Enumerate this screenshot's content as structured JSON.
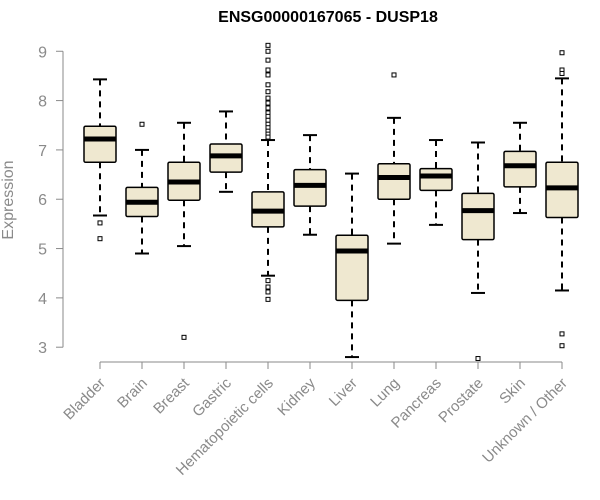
{
  "chart_data": {
    "type": "box",
    "title": "ENSG00000167065 - DUSP18",
    "xlabel": "",
    "ylabel": "Expression",
    "ylim": [
      2.7,
      9.35
    ],
    "yticks": [
      3,
      4,
      5,
      6,
      7,
      8,
      9
    ],
    "grid": false,
    "colors": {
      "box_fill": "#efe8d0",
      "box_stroke": "#000000",
      "median": "#000000",
      "axis": "#8a8a8a",
      "title": "#000000"
    },
    "categories": [
      "Bladder",
      "Brain",
      "Breast",
      "Gastric",
      "Hematopoietic cells",
      "Kidney",
      "Liver",
      "Lung",
      "Pancreas",
      "Prostate",
      "Skin",
      "Unknown / Other"
    ],
    "boxes": [
      {
        "name": "Bladder",
        "min": 5.67,
        "q1": 6.75,
        "median": 7.22,
        "q3": 7.48,
        "max": 8.43,
        "outliers": [
          5.52,
          5.2
        ]
      },
      {
        "name": "Brain",
        "min": 4.9,
        "q1": 5.65,
        "median": 5.94,
        "q3": 6.24,
        "max": 7.0,
        "outliers": [
          7.52
        ]
      },
      {
        "name": "Breast",
        "min": 5.05,
        "q1": 5.98,
        "median": 6.35,
        "q3": 6.75,
        "max": 7.55,
        "outliers": [
          3.2
        ]
      },
      {
        "name": "Gastric",
        "min": 6.15,
        "q1": 6.55,
        "median": 6.88,
        "q3": 7.12,
        "max": 7.78,
        "outliers": []
      },
      {
        "name": "Hematopoietic cells",
        "min": 4.45,
        "q1": 5.44,
        "median": 5.76,
        "q3": 6.15,
        "max": 7.2,
        "outliers": [
          9.12,
          9.0,
          8.82,
          8.62,
          8.52,
          8.32,
          8.18,
          8.05,
          7.95,
          7.85,
          7.75,
          7.68,
          7.6,
          7.52,
          7.45,
          7.38,
          7.32,
          7.26,
          4.35,
          4.22,
          4.12,
          3.97
        ]
      },
      {
        "name": "Kidney",
        "min": 5.28,
        "q1": 5.86,
        "median": 6.28,
        "q3": 6.6,
        "max": 7.3,
        "outliers": []
      },
      {
        "name": "Liver",
        "min": 2.8,
        "q1": 3.95,
        "median": 4.95,
        "q3": 5.27,
        "max": 6.52,
        "outliers": []
      },
      {
        "name": "Lung",
        "min": 5.1,
        "q1": 6.0,
        "median": 6.44,
        "q3": 6.72,
        "max": 7.65,
        "outliers": [
          8.52
        ]
      },
      {
        "name": "Pancreas",
        "min": 5.48,
        "q1": 6.18,
        "median": 6.47,
        "q3": 6.62,
        "max": 7.2,
        "outliers": []
      },
      {
        "name": "Prostate",
        "min": 4.1,
        "q1": 5.18,
        "median": 5.77,
        "q3": 6.12,
        "max": 7.15,
        "outliers": [
          2.77
        ]
      },
      {
        "name": "Skin",
        "min": 5.72,
        "q1": 6.25,
        "median": 6.68,
        "q3": 6.97,
        "max": 7.55,
        "outliers": []
      },
      {
        "name": "Unknown / Other",
        "min": 4.15,
        "q1": 5.63,
        "median": 6.23,
        "q3": 6.75,
        "max": 8.45,
        "outliers": [
          8.97,
          8.62,
          8.55,
          3.27,
          3.03
        ]
      }
    ]
  }
}
